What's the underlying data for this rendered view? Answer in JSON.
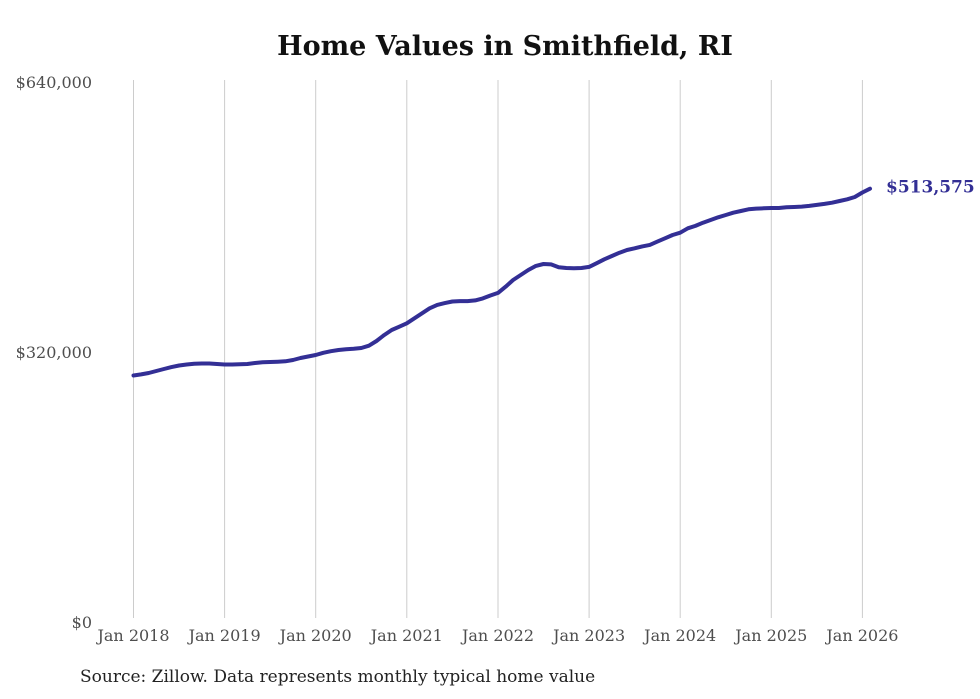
{
  "chart": {
    "title": "Home Values in Smithfield, RI",
    "source": "Source: Zillow. Data represents monthly typical home value",
    "end_label": "$513,575"
  },
  "chart_data": {
    "type": "line",
    "title": "Home Values in Smithfield, RI",
    "series_name": "Monthly typical home value",
    "frequency": "monthly",
    "x_start": "2018-01",
    "x_end": "2026-02",
    "x": [
      "2018-01",
      "2018-02",
      "2018-03",
      "2018-04",
      "2018-05",
      "2018-06",
      "2018-07",
      "2018-08",
      "2018-09",
      "2018-10",
      "2018-11",
      "2018-12",
      "2019-01",
      "2019-02",
      "2019-03",
      "2019-04",
      "2019-05",
      "2019-06",
      "2019-07",
      "2019-08",
      "2019-09",
      "2019-10",
      "2019-11",
      "2019-12",
      "2020-01",
      "2020-02",
      "2020-03",
      "2020-04",
      "2020-05",
      "2020-06",
      "2020-07",
      "2020-08",
      "2020-09",
      "2020-10",
      "2020-11",
      "2020-12",
      "2021-01",
      "2021-02",
      "2021-03",
      "2021-04",
      "2021-05",
      "2021-06",
      "2021-07",
      "2021-08",
      "2021-09",
      "2021-10",
      "2021-11",
      "2021-12",
      "2022-01",
      "2022-02",
      "2022-03",
      "2022-04",
      "2022-05",
      "2022-06",
      "2022-07",
      "2022-08",
      "2022-09",
      "2022-10",
      "2022-11",
      "2022-12",
      "2023-01",
      "2023-02",
      "2023-03",
      "2023-04",
      "2023-05",
      "2023-06",
      "2023-07",
      "2023-08",
      "2023-09",
      "2023-10",
      "2023-11",
      "2023-12",
      "2024-01",
      "2024-02",
      "2024-03",
      "2024-04",
      "2024-05",
      "2024-06",
      "2024-07",
      "2024-08",
      "2024-09",
      "2024-10",
      "2024-11",
      "2024-12",
      "2025-01",
      "2025-02",
      "2025-03",
      "2025-04",
      "2025-05",
      "2025-06",
      "2025-07",
      "2025-08",
      "2025-09",
      "2025-10",
      "2025-11",
      "2025-12",
      "2026-01",
      "2026-02"
    ],
    "values": [
      292200,
      293500,
      295100,
      297500,
      299900,
      302100,
      304000,
      305200,
      306100,
      306400,
      306400,
      305800,
      305200,
      305200,
      305500,
      305800,
      307000,
      307800,
      308200,
      308500,
      309000,
      310500,
      312900,
      314700,
      316500,
      319000,
      321000,
      322400,
      323200,
      323800,
      324700,
      327500,
      333000,
      340000,
      346100,
      350000,
      354000,
      360000,
      365900,
      371800,
      375800,
      378000,
      379800,
      380300,
      380300,
      381200,
      383500,
      387000,
      390000,
      397400,
      405300,
      411300,
      417200,
      422000,
      424300,
      423800,
      420400,
      419600,
      419200,
      419600,
      420800,
      425200,
      429900,
      433800,
      437700,
      440900,
      442900,
      445100,
      446900,
      450800,
      454800,
      458700,
      461400,
      466600,
      469400,
      473300,
      476400,
      479600,
      482400,
      485100,
      487100,
      489100,
      489900,
      490300,
      490700,
      490700,
      491500,
      491900,
      492300,
      493100,
      494300,
      495500,
      497000,
      499000,
      501000,
      503700,
      509000,
      513575
    ],
    "end_label": "$513,575",
    "latest_value": 513575,
    "ylim": [
      0,
      640000
    ],
    "y_ticks": [
      {
        "value": 0,
        "label": "$0"
      },
      {
        "value": 320000,
        "label": "$320,000"
      },
      {
        "value": 640000,
        "label": "$640,000"
      }
    ],
    "x_ticks": [
      {
        "x": "2018-01",
        "label": "Jan 2018"
      },
      {
        "x": "2019-01",
        "label": "Jan 2019"
      },
      {
        "x": "2020-01",
        "label": "Jan 2020"
      },
      {
        "x": "2021-01",
        "label": "Jan 2021"
      },
      {
        "x": "2022-01",
        "label": "Jan 2022"
      },
      {
        "x": "2023-01",
        "label": "Jan 2023"
      },
      {
        "x": "2024-01",
        "label": "Jan 2024"
      },
      {
        "x": "2025-01",
        "label": "Jan 2025"
      },
      {
        "x": "2026-01",
        "label": "Jan 2026"
      }
    ],
    "legend": "none",
    "grid": "vertical-only",
    "colors": {
      "line": "#332f95",
      "end_label": "#332f95",
      "gridline": "#cccccc",
      "tick_label": "#4e4e4e",
      "title": "#111111",
      "source": "#222222",
      "background": "#ffffff"
    }
  }
}
